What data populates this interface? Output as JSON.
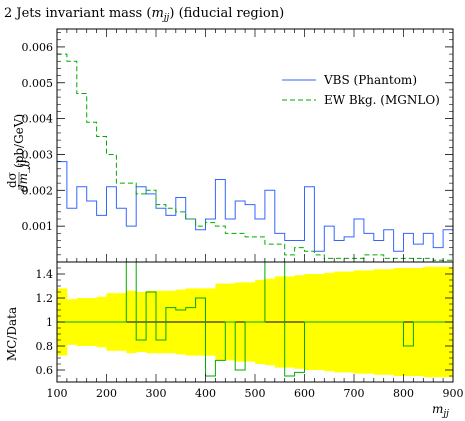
{
  "chart_data": [
    {
      "type": "line",
      "subtype": "histogram",
      "title": "2 Jets invariant mass (m_jj) (fiducial region)",
      "title_parts": {
        "prefix": "2 Jets invariant mass (",
        "math": "m",
        "sub": "jj",
        "suffix": ") (fiducial region)"
      },
      "ylabel": "dσ/dm_jj (pb/GeV)",
      "ylabel_parts": {
        "frac_num": "dσ",
        "frac_den": "dm_jj",
        "unit": "(pb/GeV)"
      },
      "xlim": [
        100,
        900
      ],
      "ylim": [
        0,
        0.0065
      ],
      "yticks": [
        0.001,
        0.002,
        0.003,
        0.004,
        0.005,
        0.006
      ],
      "ytick_labels": [
        "0.001",
        "0.002",
        "0.003",
        "0.004",
        "0.005",
        "0.006"
      ],
      "legend_position": "top-right",
      "bin_edges": [
        100,
        120,
        140,
        160,
        180,
        200,
        220,
        240,
        260,
        280,
        300,
        320,
        340,
        360,
        380,
        400,
        420,
        440,
        460,
        480,
        500,
        520,
        540,
        560,
        580,
        600,
        620,
        640,
        660,
        680,
        700,
        720,
        740,
        760,
        780,
        800,
        820,
        840,
        860,
        880,
        900
      ],
      "series": [
        {
          "name": "VBS (Phantom)",
          "color": "#3366ff",
          "linestyle": "solid",
          "values": [
            0.0028,
            0.0015,
            0.0021,
            0.0017,
            0.0013,
            0.0021,
            0.0015,
            0.001,
            0.0021,
            0.0019,
            0.0015,
            0.0013,
            0.0018,
            0.0012,
            0.0009,
            0.0012,
            0.0023,
            0.0012,
            0.0017,
            0.0016,
            0.0012,
            0.002,
            0.0008,
            0.0006,
            0.0006,
            0.0021,
            0.0003,
            0.001,
            0.0006,
            0.0007,
            0.0012,
            0.0008,
            0.0006,
            0.0009,
            0.0003,
            0.0008,
            0.0005,
            0.0008,
            0.0004,
            0.0009
          ]
        },
        {
          "name": "EW Bkg. (MGNLO)",
          "color": "#00aa00",
          "linestyle": "dashed",
          "values": [
            0.0058,
            0.0056,
            0.0047,
            0.0039,
            0.0035,
            0.003,
            0.0022,
            0.0022,
            0.0019,
            0.002,
            0.0016,
            0.0015,
            0.0014,
            0.0012,
            0.001,
            0.0011,
            0.001,
            0.0008,
            0.0008,
            0.0007,
            0.0007,
            0.0005,
            0.0005,
            0.0002,
            0.0004,
            0.0003,
            0.0002,
            0.0001,
            0.0001,
            0.0001,
            0.0001,
            0.0002,
            0.0002,
            0.0001,
            0.0001,
            0.0001,
            0.0001,
            0.0001,
            5e-05,
            5e-05
          ]
        }
      ]
    },
    {
      "type": "line",
      "subtype": "ratio",
      "ylabel": "MC/Data",
      "xlabel_parts": {
        "math": "m",
        "sub": "jj"
      },
      "xlim": [
        100,
        900
      ],
      "ylim": [
        0.5,
        1.5
      ],
      "yticks": [
        0.6,
        0.8,
        1.0,
        1.2,
        1.4
      ],
      "ytick_labels": [
        "0.6",
        "0.8",
        "1",
        "1.2",
        "1.4"
      ],
      "xticks": [
        100,
        200,
        300,
        400,
        500,
        600,
        700,
        800,
        900
      ],
      "xtick_labels": [
        "100",
        "200",
        "300",
        "400",
        "500",
        "600",
        "700",
        "800",
        "900"
      ],
      "band_color": "#ffff00",
      "band_half_width": [
        0.28,
        0.19,
        0.2,
        0.2,
        0.21,
        0.24,
        0.24,
        0.26,
        0.25,
        0.26,
        0.26,
        0.26,
        0.27,
        0.28,
        0.28,
        0.28,
        0.32,
        0.32,
        0.33,
        0.33,
        0.35,
        0.36,
        0.38,
        0.38,
        0.39,
        0.4,
        0.4,
        0.41,
        0.42,
        0.42,
        0.43,
        0.43,
        0.44,
        0.44,
        0.45,
        0.45,
        0.45,
        0.46,
        0.46,
        0.46
      ],
      "ratio_values": [
        1.0,
        1.0,
        1.0,
        1.0,
        1.0,
        1.0,
        1.0,
        1.6,
        0.85,
        1.25,
        0.85,
        1.12,
        1.1,
        1.12,
        1.2,
        0.55,
        0.68,
        1.0,
        0.6,
        1.0,
        1.0,
        1.6,
        1.6,
        0.55,
        0.58,
        1.0,
        1.0,
        1.0,
        1.0,
        1.0,
        1.0,
        1.0,
        1.0,
        1.0,
        1.0,
        0.8,
        1.0,
        1.0,
        1.0,
        1.0
      ],
      "ratio_color": "#00aa00"
    }
  ]
}
